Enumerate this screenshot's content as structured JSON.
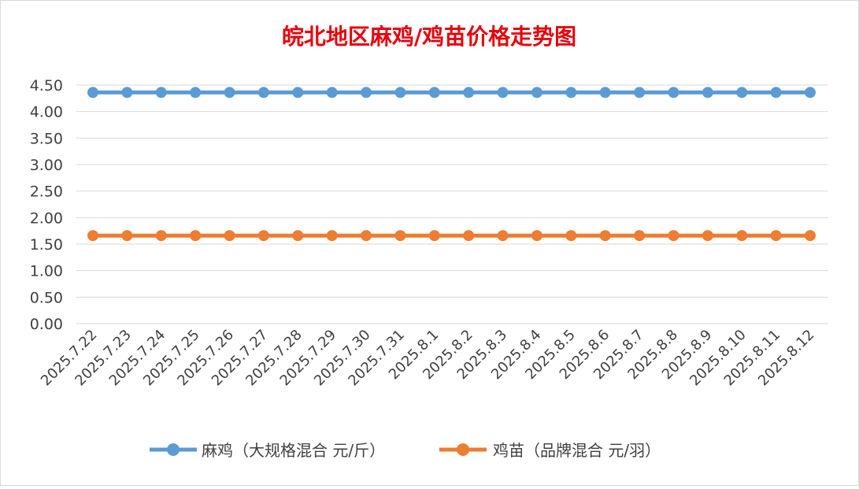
{
  "chart_data": {
    "type": "line",
    "title": "皖北地区麻鸡/鸡苗价格走势图",
    "categories": [
      "2025.7.22",
      "2025.7.23",
      "2025.7.24",
      "2025.7.25",
      "2025.7.26",
      "2025.7.27",
      "2025.7.28",
      "2025.7.29",
      "2025.7.30",
      "2025.7.31",
      "2025.8.1",
      "2025.8.2",
      "2025.8.3",
      "2025.8.4",
      "2025.8.5",
      "2025.8.6",
      "2025.8.7",
      "2025.8.8",
      "2025.8.9",
      "2025.8.10",
      "2025.8.11",
      "2025.8.12"
    ],
    "series": [
      {
        "name": "麻鸡（大规格混合 元/斤）",
        "color": "#5b9bd5",
        "values": [
          4.36,
          4.36,
          4.36,
          4.36,
          4.36,
          4.36,
          4.36,
          4.36,
          4.36,
          4.36,
          4.36,
          4.36,
          4.36,
          4.36,
          4.36,
          4.36,
          4.36,
          4.36,
          4.36,
          4.36,
          4.36,
          4.36
        ]
      },
      {
        "name": "鸡苗（品牌混合 元/羽）",
        "color": "#ed7d31",
        "values": [
          1.66,
          1.66,
          1.66,
          1.66,
          1.66,
          1.66,
          1.66,
          1.66,
          1.66,
          1.66,
          1.66,
          1.66,
          1.66,
          1.66,
          1.66,
          1.66,
          1.66,
          1.66,
          1.66,
          1.66,
          1.66,
          1.66
        ]
      }
    ],
    "yticks": [
      "0.00",
      "0.50",
      "1.00",
      "1.50",
      "2.00",
      "2.50",
      "3.00",
      "3.50",
      "4.00",
      "4.50"
    ],
    "ylim": [
      0,
      4.5
    ],
    "grid": true,
    "legend": "bottom"
  }
}
